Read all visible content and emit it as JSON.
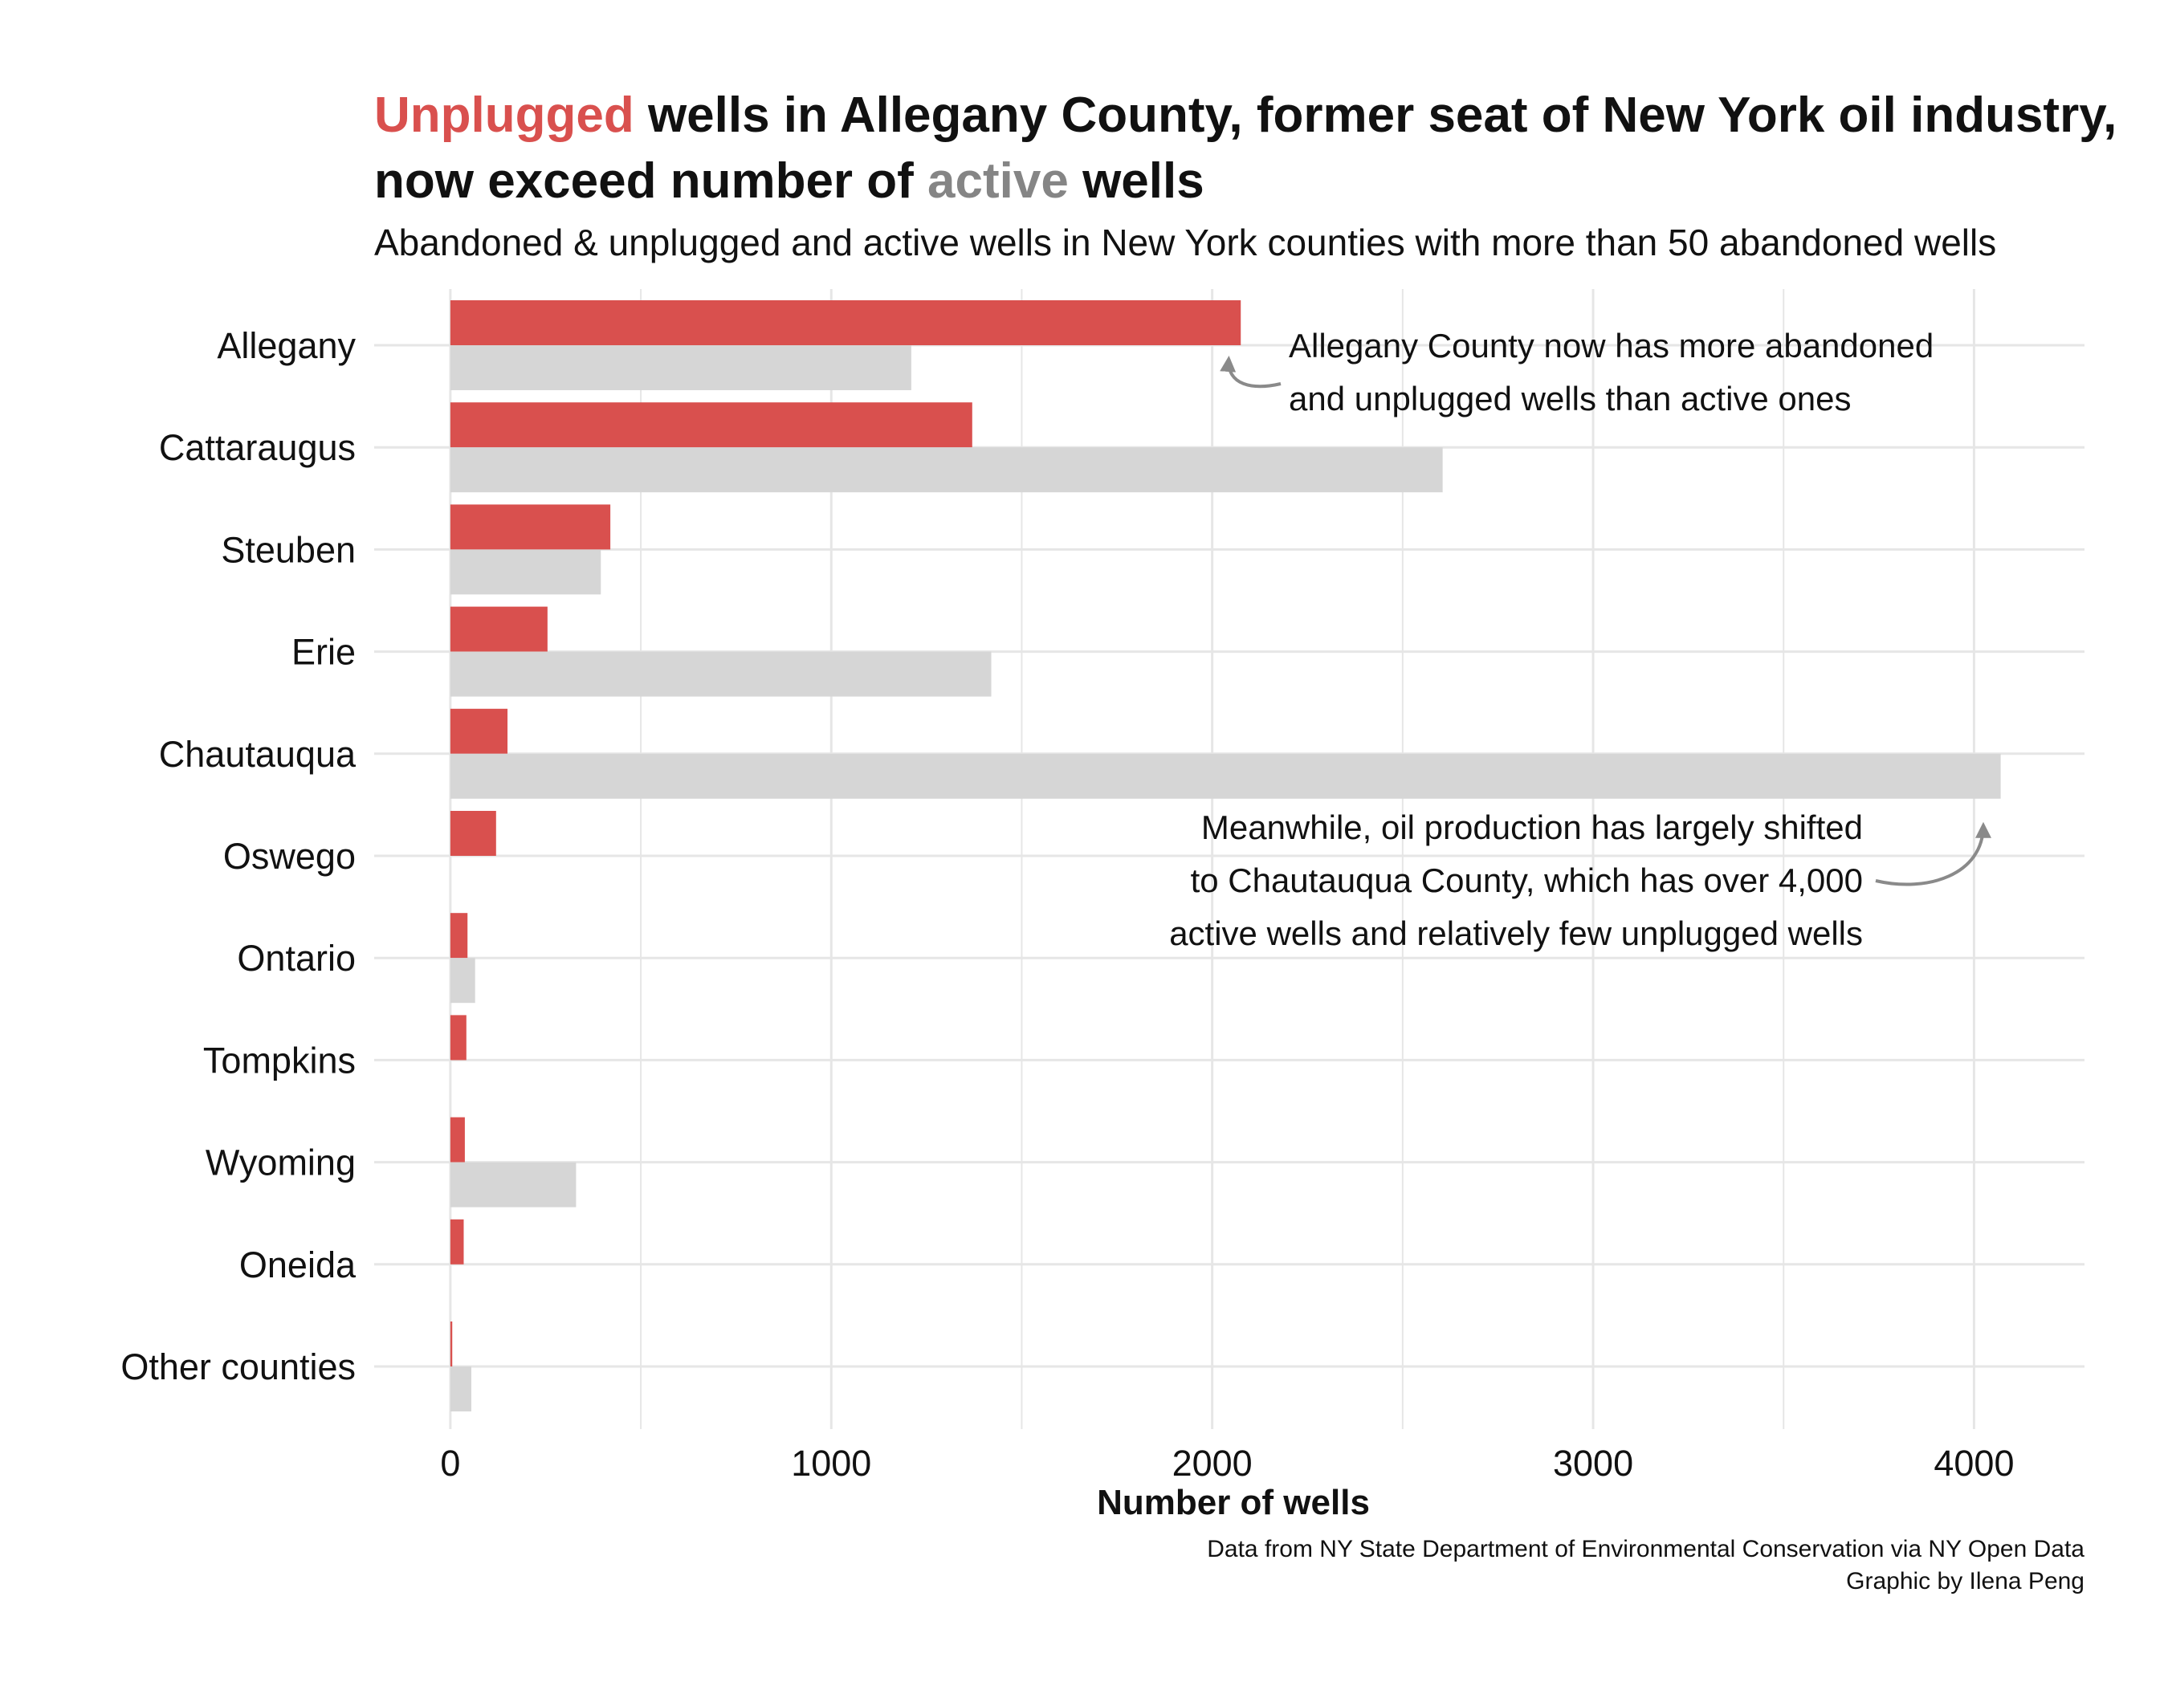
{
  "title": {
    "highlight_unplugged": "Unplugged",
    "part1": " wells in Allegany County, former seat of New York oil industry, now exceed number of ",
    "highlight_active": "active",
    "part2": " wells"
  },
  "subtitle": "Abandoned & unplugged and active wells in New York counties with more than 50 abandoned wells",
  "caption": {
    "line1": "Data from NY State Department of Environmental Conservation via NY Open Data",
    "line2": "Graphic by Ilena Peng"
  },
  "colors": {
    "unplugged": "#d9504e",
    "active": "#d6d6d6",
    "grid": "#e6e6e6",
    "annotation_arrow": "#8a8a8a"
  },
  "chart_data": {
    "type": "bar",
    "orientation": "horizontal",
    "categories": [
      "Allegany",
      "Cattaraugus",
      "Steuben",
      "Erie",
      "Chautauqua",
      "Oswego",
      "Ontario",
      "Tompkins",
      "Wyoming",
      "Oneida",
      "Other counties"
    ],
    "series": [
      {
        "name": "Unplugged",
        "color": "#d9504e",
        "values": [
          2075,
          1370,
          420,
          255,
          150,
          120,
          45,
          42,
          38,
          35,
          5
        ]
      },
      {
        "name": "Active",
        "color": "#d6d6d6",
        "values": [
          1210,
          2605,
          395,
          1420,
          4070,
          0,
          65,
          0,
          330,
          0,
          55
        ]
      }
    ],
    "xlabel": "Number of wells",
    "ylabel": "",
    "xlim": [
      -200,
      4290
    ],
    "xticks": [
      0,
      1000,
      2000,
      3000,
      4000
    ],
    "grid": true,
    "annotations": [
      {
        "lines": [
          "Allegany County now has more abandoned",
          "and unplugged wells than active ones"
        ],
        "points_to": {
          "category": "Allegany",
          "series": "Unplugged"
        }
      },
      {
        "lines": [
          "Meanwhile, oil production has largely shifted",
          "to Chautauqua County, which has over 4,000",
          "active wells and relatively few unplugged wells"
        ],
        "points_to": {
          "category": "Chautauqua",
          "series": "Active"
        }
      }
    ]
  }
}
